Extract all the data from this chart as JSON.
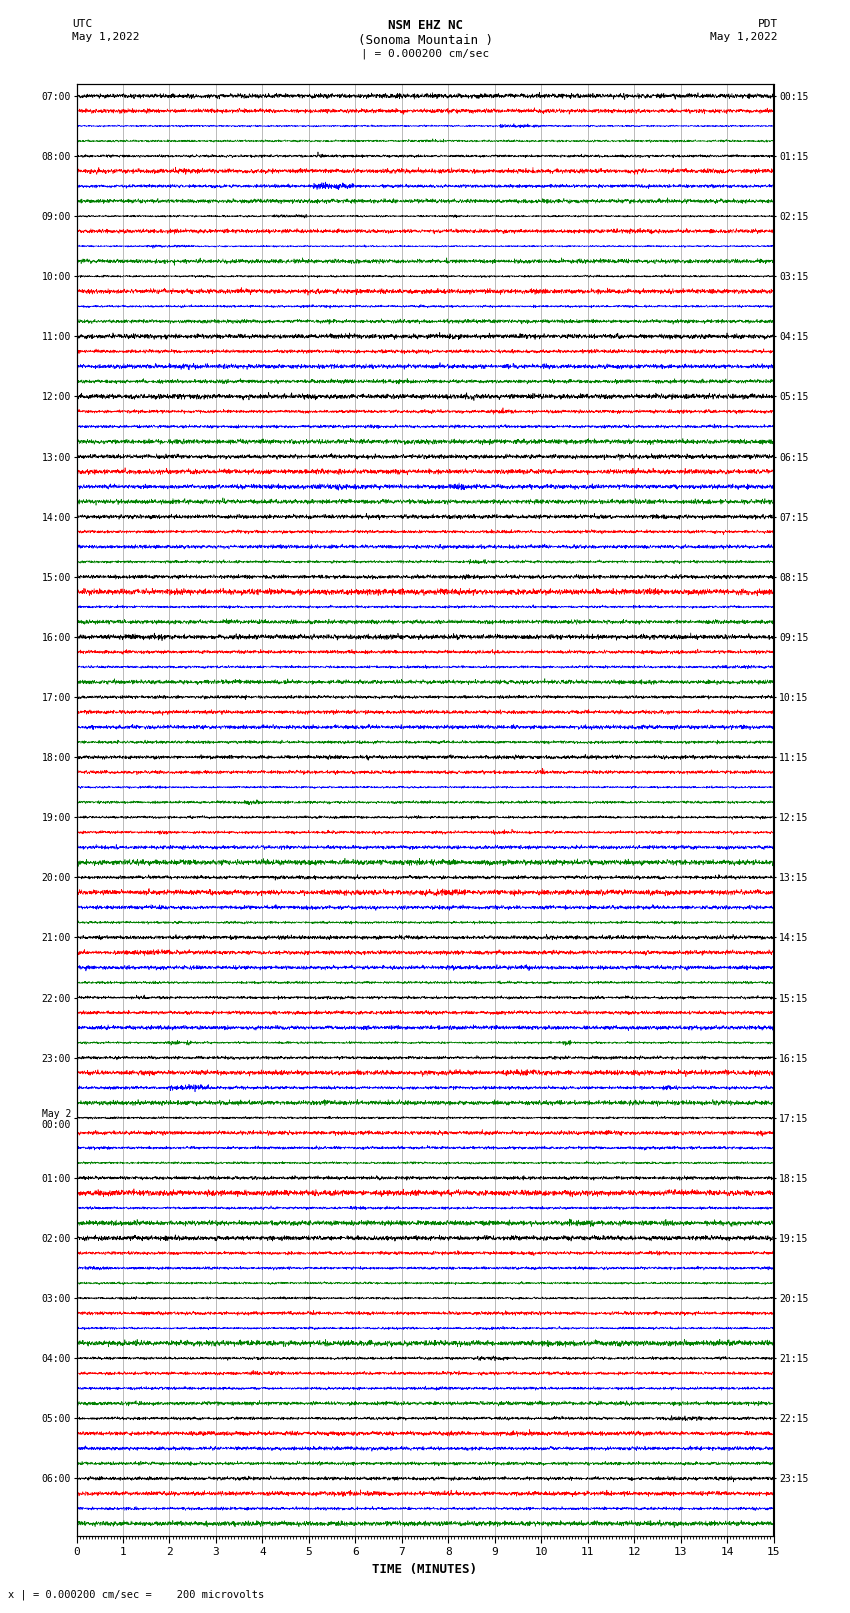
{
  "title_line1": "NSM EHZ NC",
  "title_line2": "(Sonoma Mountain )",
  "title_line3": "| = 0.000200 cm/sec",
  "label_left_top1": "UTC",
  "label_left_top2": "May 1,2022",
  "label_right_top1": "PDT",
  "label_right_top2": "May 1,2022",
  "xlabel": "TIME (MINUTES)",
  "footer": "x | = 0.000200 cm/sec =    200 microvolts",
  "utc_labels": [
    "07:00",
    "08:00",
    "09:00",
    "10:00",
    "11:00",
    "12:00",
    "13:00",
    "14:00",
    "15:00",
    "16:00",
    "17:00",
    "18:00",
    "19:00",
    "20:00",
    "21:00",
    "22:00",
    "23:00",
    "May 2\n00:00",
    "01:00",
    "02:00",
    "03:00",
    "04:00",
    "05:00",
    "06:00"
  ],
  "pdt_labels": [
    "00:15",
    "01:15",
    "02:15",
    "03:15",
    "04:15",
    "05:15",
    "06:15",
    "07:15",
    "08:15",
    "09:15",
    "10:15",
    "11:15",
    "12:15",
    "13:15",
    "14:15",
    "15:15",
    "16:15",
    "17:15",
    "18:15",
    "19:15",
    "20:15",
    "21:15",
    "22:15",
    "23:15"
  ],
  "n_hours": 24,
  "traces_per_hour": 4,
  "colors": [
    "black",
    "red",
    "blue",
    "green"
  ],
  "bg_color": "#ffffff",
  "xmin": 0,
  "xmax": 15,
  "xticks": [
    0,
    1,
    2,
    3,
    4,
    5,
    6,
    7,
    8,
    9,
    10,
    11,
    12,
    13,
    14,
    15
  ],
  "seed": 42
}
